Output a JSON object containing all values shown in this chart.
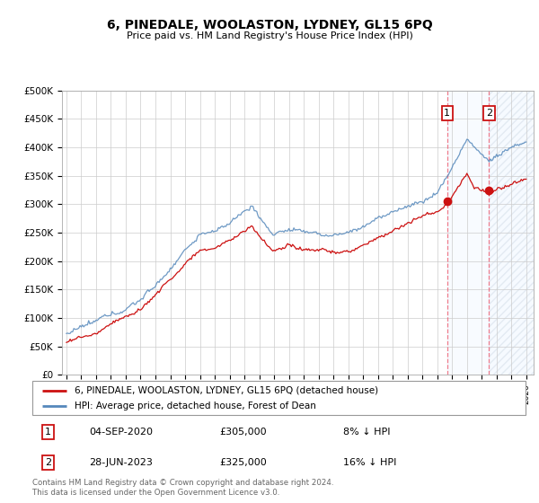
{
  "title": "6, PINEDALE, WOOLASTON, LYDNEY, GL15 6PQ",
  "subtitle": "Price paid vs. HM Land Registry's House Price Index (HPI)",
  "ylim": [
    0,
    500000
  ],
  "yticks": [
    0,
    50000,
    100000,
    150000,
    200000,
    250000,
    300000,
    350000,
    400000,
    450000,
    500000
  ],
  "ytick_labels": [
    "£0",
    "£50K",
    "£100K",
    "£150K",
    "£200K",
    "£250K",
    "£300K",
    "£350K",
    "£400K",
    "£450K",
    "£500K"
  ],
  "xlim_start": 1994.7,
  "xlim_end": 2026.5,
  "xtick_years": [
    1995,
    1996,
    1997,
    1998,
    1999,
    2000,
    2001,
    2002,
    2003,
    2004,
    2005,
    2006,
    2007,
    2008,
    2009,
    2010,
    2011,
    2012,
    2013,
    2014,
    2015,
    2016,
    2017,
    2018,
    2019,
    2020,
    2021,
    2022,
    2023,
    2024,
    2025,
    2026
  ],
  "hpi_color": "#5588bb",
  "price_color": "#cc1111",
  "marker1_date": 2020.674,
  "marker1_price": 305000,
  "marker2_date": 2023.49,
  "marker2_price": 325000,
  "legend_label1": "6, PINEDALE, WOOLASTON, LYDNEY, GL15 6PQ (detached house)",
  "legend_label2": "HPI: Average price, detached house, Forest of Dean",
  "table_row1": [
    "1",
    "04-SEP-2020",
    "£305,000",
    "8% ↓ HPI"
  ],
  "table_row2": [
    "2",
    "28-JUN-2023",
    "£325,000",
    "16% ↓ HPI"
  ],
  "footer": "Contains HM Land Registry data © Crown copyright and database right 2024.\nThis data is licensed under the Open Government Licence v3.0.",
  "bg_color": "#ffffff",
  "grid_color": "#cccccc",
  "shade_color": "#ddeeff",
  "vline_color": "#ee6677",
  "marker1_vline_x": 2020.674,
  "marker2_vline_x": 2023.49
}
